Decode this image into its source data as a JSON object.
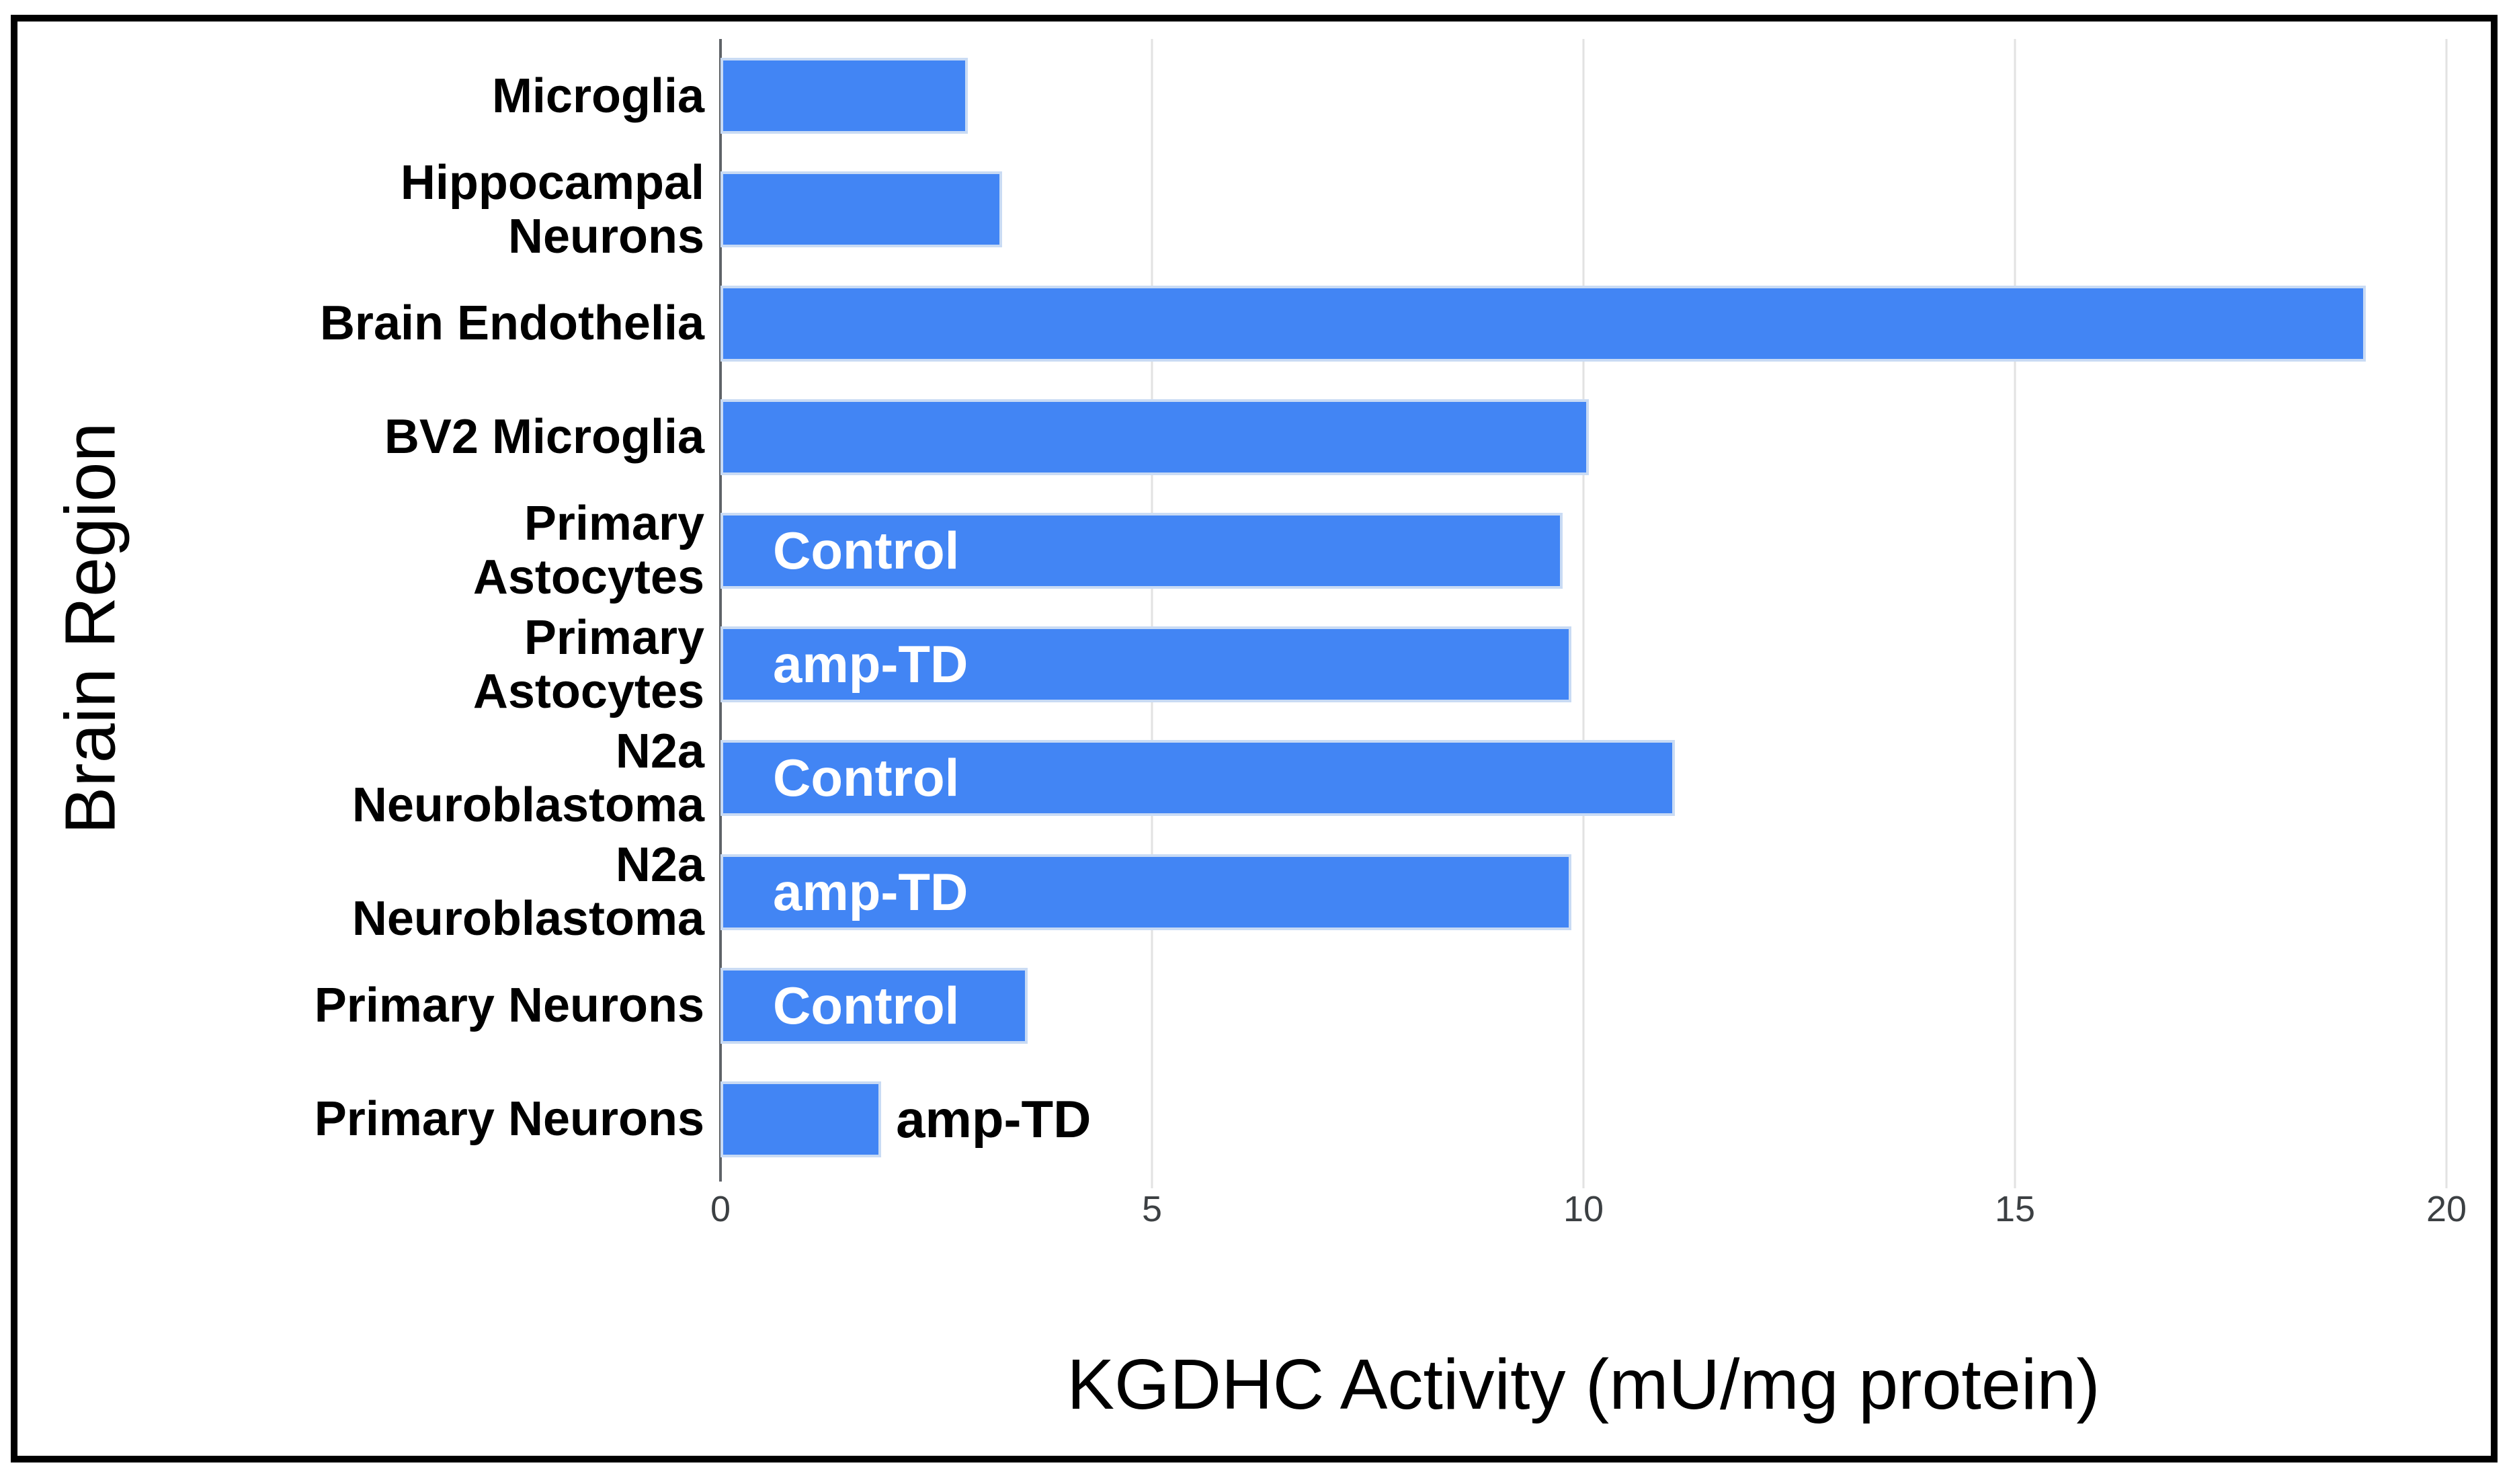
{
  "chart_data": {
    "type": "bar",
    "orientation": "horizontal",
    "xlabel": "KGDHC Activity (mU/mg protein)",
    "ylabel": "Brain Region",
    "xlim": [
      0,
      20
    ],
    "x_ticks": [
      "0",
      "5",
      "10",
      "15",
      "20"
    ],
    "x_tick_values": [
      0,
      5,
      10,
      15,
      20
    ],
    "grid": "vertical-light-gray",
    "legend": "none",
    "colors": {
      "bar_fill": "#4285f4",
      "bar_border": "#c9dbf4",
      "gridline": "#e2e2e2",
      "axis_line": "#5f6368",
      "tick_text": "#3c4043",
      "label_text": "#000000",
      "frame": "#000000"
    },
    "rows": [
      {
        "category": "Microglia",
        "lines": [
          "Microglia"
        ],
        "value": 2.8,
        "bar_label": "",
        "bar_label_style": "none"
      },
      {
        "category": "Hippocampal Neurons",
        "lines": [
          "Hippocampal",
          "Neurons"
        ],
        "value": 3.2,
        "bar_label": "",
        "bar_label_style": "none"
      },
      {
        "category": "Brain Endothelia",
        "lines": [
          "Brain Endothelia"
        ],
        "value": 19.0,
        "bar_label": "",
        "bar_label_style": "none"
      },
      {
        "category": "BV2 Microglia",
        "lines": [
          "BV2 Microglia"
        ],
        "value": 10.0,
        "bar_label": "",
        "bar_label_style": "none"
      },
      {
        "category": "Primary Astocytes",
        "lines": [
          "Primary",
          "Astocytes"
        ],
        "value": 9.7,
        "bar_label": "Control",
        "bar_label_style": "inside-white"
      },
      {
        "category": "Primary Astocytes",
        "lines": [
          "Primary",
          "Astocytes"
        ],
        "value": 9.8,
        "bar_label": "amp-TD",
        "bar_label_style": "inside-white"
      },
      {
        "category": "N2a Neuroblastoma",
        "lines": [
          "N2a",
          "Neuroblastoma"
        ],
        "value": 11.0,
        "bar_label": "Control",
        "bar_label_style": "inside-white"
      },
      {
        "category": "N2a Neuroblastoma",
        "lines": [
          "N2a",
          "Neuroblastoma"
        ],
        "value": 9.8,
        "bar_label": "amp-TD",
        "bar_label_style": "inside-white"
      },
      {
        "category": "Primary Neurons",
        "lines": [
          "Primary Neurons"
        ],
        "value": 3.5,
        "bar_label": "Control",
        "bar_label_style": "inside-white"
      },
      {
        "category": "Primary Neurons",
        "lines": [
          "Primary Neurons"
        ],
        "value": 1.8,
        "bar_label": "amp-TD",
        "bar_label_style": "outside-black"
      }
    ]
  }
}
